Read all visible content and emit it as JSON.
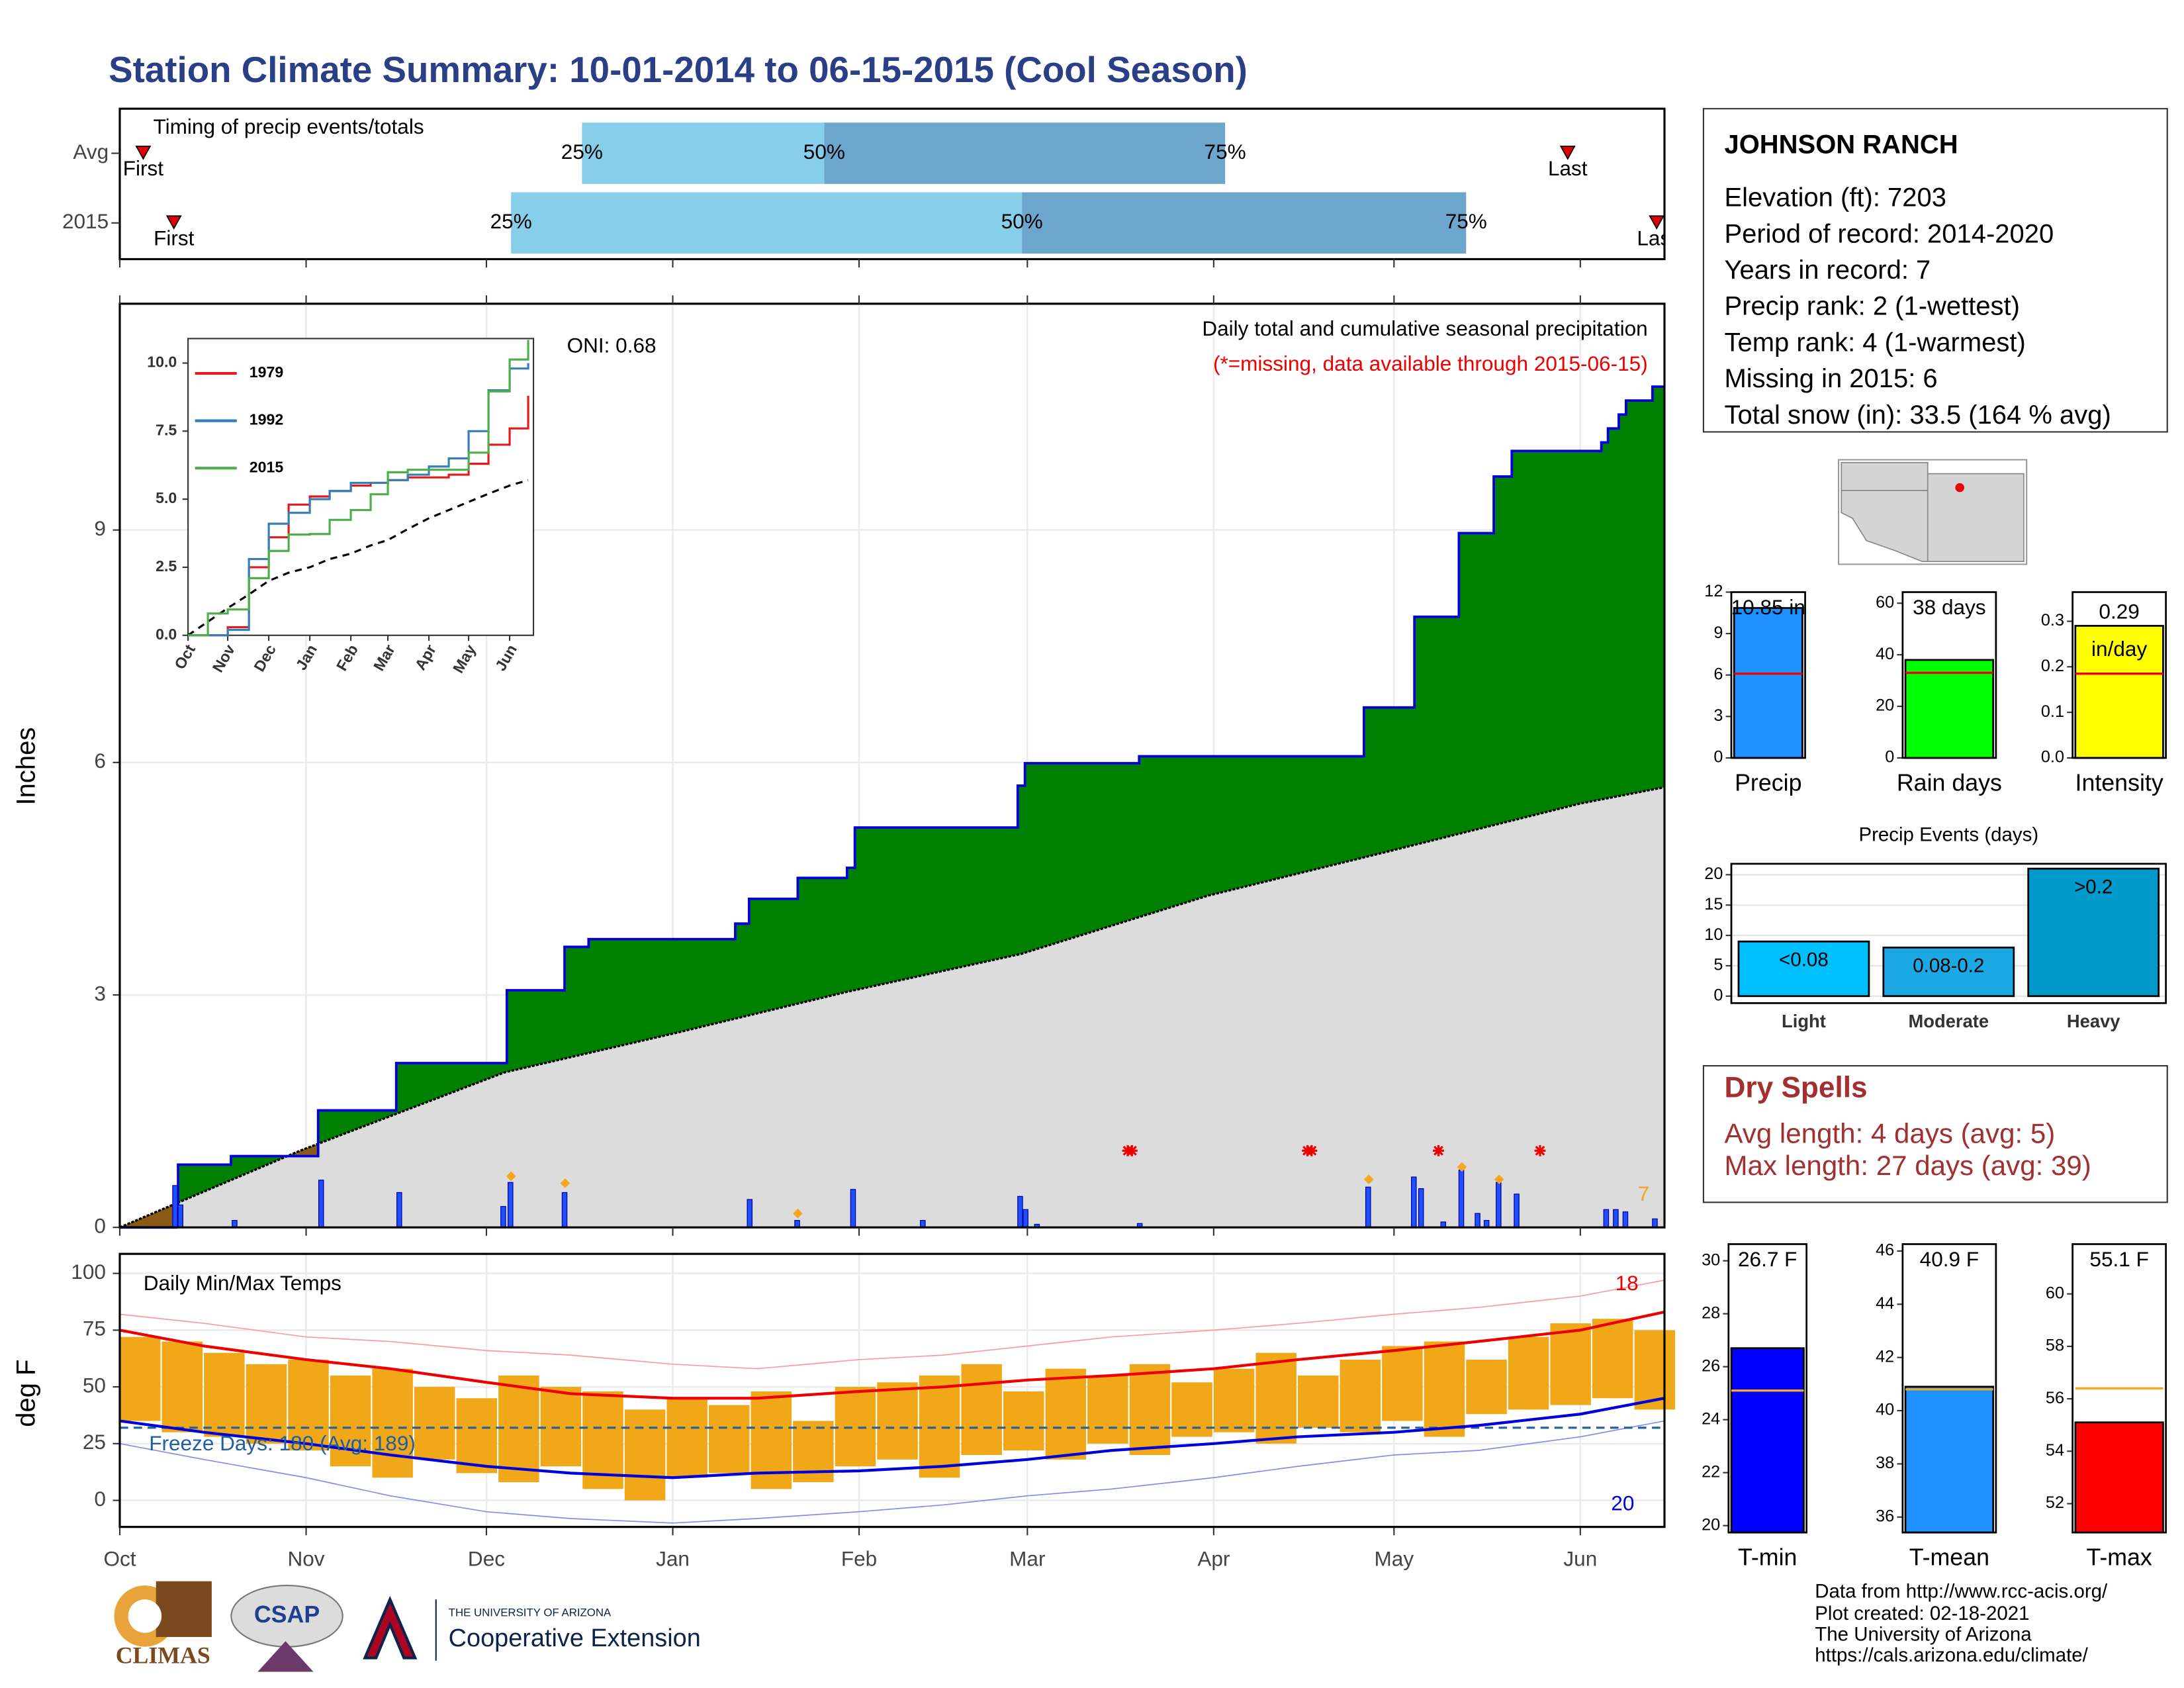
{
  "title": "Station Climate Summary: 10-01-2014 to 06-15-2015 (Cool Season)",
  "station": {
    "name": "JOHNSON RANCH",
    "lines": [
      "Elevation (ft): 7203",
      "Period of record: 2014-2020",
      "Years in record: 7",
      "Precip rank: 2 (1-wettest)",
      "Temp rank: 4 (1-warmest)",
      "Missing in 2015: 6",
      "Total snow (in): 33.5 (164 % avg)"
    ]
  },
  "dry_spells": {
    "title": "Dry Spells",
    "lines": [
      "Avg length: 4 days (avg: 5)",
      "Max length: 27 days (avg: 39)"
    ]
  },
  "footer": [
    "Data from http://www.rcc-acis.org/",
    "Plot created: 02-18-2021",
    "The University of Arizona",
    "https://cals.arizona.edu/climate/"
  ],
  "logos": {
    "climas": "CLIMAS",
    "csap": "CSAP",
    "university": "THE UNIVERSITY OF ARIZONA",
    "extension": "Cooperative Extension"
  },
  "chart_data": [
    {
      "type": "timeline",
      "title": "Timing of precip events/totals",
      "xlim": [
        0,
        257
      ],
      "rows": [
        {
          "name": "Avg",
          "first": 3.9,
          "quantiles": [
            76.9,
            117.2,
            183.9
          ],
          "last": 240.9
        },
        {
          "name": "2015",
          "first": 9,
          "quantiles": [
            65.1,
            150.1,
            224
          ],
          "last": 255.7
        }
      ],
      "quantile_labels": [
        "25%",
        "50%",
        "75%"
      ],
      "first_label": "First",
      "last_label": "Last",
      "colors": [
        "#87ceeb",
        "#6ca6cd"
      ],
      "marker_color": "#dd0000"
    },
    {
      "type": "area",
      "title": "Daily total and cumulative seasonal precipitation",
      "subtitle": "(*=missing, data available through 2015-06-15)",
      "annotation": "ONI: 0.68",
      "count_label": "7",
      "y_label": "Inches",
      "xlim": [
        0,
        257
      ],
      "ylim": [
        0,
        11.92
      ],
      "yticks": [
        0,
        3,
        6,
        9
      ],
      "grid": true,
      "cumulative": {
        "color": "#008000",
        "line_color": "#0000dd",
        "x": [
          0,
          9.3,
          9.7,
          18.5,
          33,
          46,
          64.4,
          74,
          78,
          102.4,
          104.7,
          112.8,
          121,
          122.3,
          149.4,
          150.6,
          169.6,
          207,
          215.4,
          222.8,
          228.6,
          231.6,
          246.5,
          247.6,
          249.4,
          250.6,
          255,
          257
        ],
        "values": [
          0,
          0.2,
          0.81,
          0.92,
          1.51,
          2.12,
          3.06,
          3.62,
          3.72,
          3.92,
          4.24,
          4.51,
          4.64,
          5.16,
          5.7,
          5.99,
          6.08,
          6.71,
          7.88,
          8.96,
          9.69,
          10.02,
          10.13,
          10.31,
          10.49,
          10.67,
          10.85,
          10.85
        ]
      },
      "average_cumulative": {
        "color": "#dcdcdc",
        "deficit_color": "#8b5a14",
        "x": [
          0,
          30,
          64,
          92,
          121,
          150,
          181,
          212,
          243,
          257
        ],
        "values": [
          0,
          0.99,
          2.0,
          2.5,
          3.04,
          3.53,
          4.28,
          4.87,
          5.47,
          5.68
        ]
      },
      "daily": {
        "color": "#1e50ff",
        "x": [
          9.3,
          10.2,
          19.2,
          33.6,
          46.6,
          63.9,
          65.1,
          74.1,
          104.9,
          112.8,
          122.1,
          133.7,
          149.9,
          150.8,
          152.7,
          169.8,
          207.8,
          215.4,
          216.6,
          220.3,
          223.3,
          226,
          227.5,
          229.5,
          232.5,
          247.4,
          249,
          250.6,
          255.5
        ],
        "values": [
          0.54,
          0.29,
          0.09,
          0.61,
          0.45,
          0.27,
          0.58,
          0.45,
          0.36,
          0.09,
          0.49,
          0.09,
          0.4,
          0.23,
          0.04,
          0.05,
          0.52,
          0.65,
          0.5,
          0.07,
          0.74,
          0.18,
          0.09,
          0.58,
          0.43,
          0.23,
          0.23,
          0.2,
          0.11
        ]
      },
      "snow": {
        "color": "#f5a623",
        "x": [
          65.1,
          74.1,
          112.8,
          207.8,
          223.3,
          229.5
        ],
        "values": [
          0.66,
          0.57,
          0.18,
          0.62,
          0.78,
          0.62
        ]
      },
      "missing": {
        "color": "#ee0000",
        "x": [
          167.7,
          168.4,
          197.6,
          198.3,
          219.4,
          236.3
        ],
        "values": [
          0.99,
          0.99,
          0.99,
          0.99,
          0.99,
          0.99
        ]
      }
    },
    {
      "type": "line",
      "xlim": [
        0,
        261
      ],
      "ylim": [
        0,
        10.9
      ],
      "yticks": [
        {
          "value": 0,
          "label": "0.0"
        },
        {
          "value": 2.5,
          "label": "2.5"
        },
        {
          "value": 5,
          "label": "5.0"
        },
        {
          "value": 7.5,
          "label": "7.5"
        },
        {
          "value": 10,
          "label": "10.0"
        }
      ],
      "xticks": [
        {
          "value": 0,
          "label": "Oct"
        },
        {
          "value": 30,
          "label": "Nov"
        },
        {
          "value": 61,
          "label": "Dec"
        },
        {
          "value": 92,
          "label": "Jan"
        },
        {
          "value": 123,
          "label": "Feb"
        },
        {
          "value": 151,
          "label": "Mar"
        },
        {
          "value": 182,
          "label": "Apr"
        },
        {
          "value": 212,
          "label": "May"
        },
        {
          "value": 243,
          "label": "Jun"
        }
      ],
      "x": [
        0,
        15,
        30,
        46,
        61,
        76,
        92,
        107,
        123,
        138,
        151,
        166,
        182,
        197,
        212,
        227,
        243,
        257
      ],
      "series": [
        {
          "name": "1979",
          "color": "#e41a1c",
          "values": [
            0,
            0,
            0.3,
            2.5,
            3.6,
            4.8,
            5.1,
            5.3,
            5.5,
            5.6,
            5.7,
            5.8,
            5.8,
            5.9,
            6.3,
            7.0,
            7.6,
            8.8
          ]
        },
        {
          "name": "1992",
          "color": "#377eb8",
          "values": [
            0,
            0,
            0.2,
            2.8,
            4.1,
            4.5,
            5.0,
            5.3,
            5.6,
            5.6,
            5.7,
            5.9,
            6.2,
            6.5,
            7.5,
            9.0,
            9.8,
            10.0
          ]
        },
        {
          "name": "2015",
          "color": "#4daf4a",
          "values": [
            0,
            0.8,
            0.95,
            2.1,
            3.1,
            3.7,
            3.72,
            4.24,
            4.6,
            5.18,
            5.99,
            6.08,
            6.08,
            6.08,
            6.71,
            8.96,
            10.13,
            10.85
          ]
        }
      ],
      "average_values": [
        0,
        0.5,
        1.0,
        1.5,
        2.0,
        2.3,
        2.5,
        2.8,
        3.0,
        3.3,
        3.5,
        3.9,
        4.3,
        4.6,
        4.9,
        5.2,
        5.5,
        5.7
      ]
    },
    {
      "type": "temperature",
      "title": "Daily Min/Max Temps",
      "y_label": "deg F",
      "annotation": "Freeze Days: 180 (Avg: 189)",
      "record_high_count": "18",
      "record_low_count": "20",
      "freeze_line": 32,
      "xlim": [
        0,
        257
      ],
      "ylim": [
        -11.7,
        108.6
      ],
      "yticks": [
        0,
        25,
        50,
        75,
        100
      ],
      "grid": true,
      "xticks": [
        {
          "value": 0,
          "label": "Oct"
        },
        {
          "value": 31,
          "label": "Nov"
        },
        {
          "value": 61,
          "label": "Dec"
        },
        {
          "value": 92,
          "label": "Jan"
        },
        {
          "value": 123,
          "label": "Feb"
        },
        {
          "value": 151,
          "label": "Mar"
        },
        {
          "value": 182,
          "label": "Apr"
        },
        {
          "value": 212,
          "label": "May"
        },
        {
          "value": 243,
          "label": "Jun"
        }
      ],
      "bars": {
        "color": "#f0a818",
        "x": [
          0,
          7,
          14,
          21,
          28,
          35,
          42,
          49,
          56,
          63,
          70,
          77,
          84,
          91,
          98,
          105,
          112,
          119,
          126,
          133,
          140,
          147,
          154,
          161,
          168,
          175,
          182,
          189,
          196,
          203,
          210,
          217,
          224,
          231,
          238,
          245,
          252
        ],
        "max": [
          72,
          70,
          65,
          60,
          62,
          55,
          58,
          50,
          45,
          55,
          50,
          48,
          40,
          45,
          42,
          48,
          35,
          50,
          52,
          55,
          60,
          48,
          58,
          55,
          60,
          52,
          58,
          65,
          55,
          62,
          68,
          70,
          62,
          72,
          78,
          80,
          75
        ],
        "min": [
          35,
          30,
          28,
          25,
          22,
          15,
          10,
          18,
          12,
          8,
          15,
          5,
          0,
          10,
          12,
          5,
          8,
          15,
          18,
          10,
          20,
          22,
          18,
          25,
          20,
          28,
          30,
          25,
          32,
          30,
          35,
          28,
          38,
          40,
          42,
          45,
          40
        ]
      },
      "x": [
        0,
        14,
        31,
        45,
        61,
        75,
        92,
        106,
        123,
        137,
        151,
        165,
        182,
        196,
        212,
        226,
        243,
        257
      ],
      "series": [
        {
          "color": "#ff9999",
          "width": 0.8,
          "values": [
            82,
            78,
            72,
            70,
            66,
            64,
            60,
            58,
            62,
            64,
            68,
            72,
            75,
            78,
            82,
            85,
            90,
            97
          ]
        },
        {
          "color": "#8888ee",
          "width": 0.8,
          "values": [
            25,
            18,
            10,
            2,
            -5,
            -8,
            -10,
            -8,
            -5,
            -2,
            2,
            5,
            10,
            15,
            20,
            22,
            28,
            35
          ]
        },
        {
          "color": "#ee0000",
          "width": 2,
          "values": [
            75,
            68,
            62,
            58,
            52,
            47,
            45,
            45,
            48,
            50,
            53,
            55,
            58,
            62,
            66,
            70,
            75,
            83
          ]
        },
        {
          "color": "#0000dd",
          "width": 2,
          "values": [
            35,
            30,
            25,
            20,
            15,
            12,
            10,
            12,
            13,
            15,
            18,
            22,
            25,
            28,
            30,
            33,
            38,
            45
          ]
        }
      ]
    },
    {
      "type": "bar",
      "categories": [
        "Precip"
      ],
      "values": [
        10.85
      ],
      "value_labels": [
        "10.85 in"
      ],
      "average": 6.1,
      "color": "#1e90ff",
      "average_color": "#ee0000",
      "ylim": [
        0,
        12
      ],
      "yticks": [
        0,
        3,
        6,
        9,
        12
      ]
    },
    {
      "type": "bar",
      "categories": [
        "Rain days"
      ],
      "values": [
        38
      ],
      "value_labels": [
        "38 days"
      ],
      "average": 33,
      "color": "#00ff00",
      "average_color": "#ee0000",
      "ylim": [
        0,
        64.3
      ],
      "yticks": [
        0,
        20,
        40,
        60
      ]
    },
    {
      "type": "bar",
      "categories": [
        "Intensity"
      ],
      "values": [
        0.29
      ],
      "unit": "in/day",
      "average": 0.185,
      "color": "#ffff00",
      "average_color": "#ee0000",
      "ylim": [
        0,
        0.364
      ],
      "yticks": [
        {
          "value": 0,
          "label": "0.0"
        },
        {
          "value": 0.1,
          "label": "0.1"
        },
        {
          "value": 0.2,
          "label": "0.2"
        },
        {
          "value": 0.3,
          "label": "0.3"
        }
      ]
    },
    {
      "type": "bar",
      "title": "Precip Events (days)",
      "categories": [
        "Light",
        "Moderate",
        "Heavy"
      ],
      "values": [
        9,
        8,
        21
      ],
      "bin_labels": [
        "<0.08",
        "0.08-0.2",
        ">0.2"
      ],
      "colors": [
        "#00bfff",
        "#1ca8e3",
        "#0099cc"
      ],
      "ylim": [
        -1.15,
        21.8
      ],
      "yticks": [
        0,
        5,
        10,
        15,
        20
      ],
      "grid": true
    },
    {
      "type": "bar",
      "categories": [
        "T-min"
      ],
      "values": [
        26.7
      ],
      "value_labels": [
        "26.7 F"
      ],
      "average": 25.1,
      "color": "#0000ff",
      "average_color": "#f5a623",
      "ylim": [
        19.74,
        30.63
      ],
      "yticks": [
        20,
        22,
        24,
        26,
        28,
        30
      ]
    },
    {
      "type": "bar",
      "categories": [
        "T-mean"
      ],
      "values": [
        40.9
      ],
      "value_labels": [
        "40.9 F"
      ],
      "average": 40.8,
      "color": "#1e90ff",
      "average_color": "#f5a623",
      "ylim": [
        35.42,
        46.26
      ],
      "yticks": [
        36,
        38,
        40,
        42,
        44,
        46
      ]
    },
    {
      "type": "bar",
      "categories": [
        "T-max"
      ],
      "values": [
        55.1
      ],
      "value_labels": [
        "55.1 F"
      ],
      "average": 56.4,
      "color": "#ff0000",
      "average_color": "#f5a623",
      "ylim": [
        50.9,
        61.9
      ],
      "yticks": [
        52,
        54,
        56,
        58,
        60
      ]
    }
  ]
}
